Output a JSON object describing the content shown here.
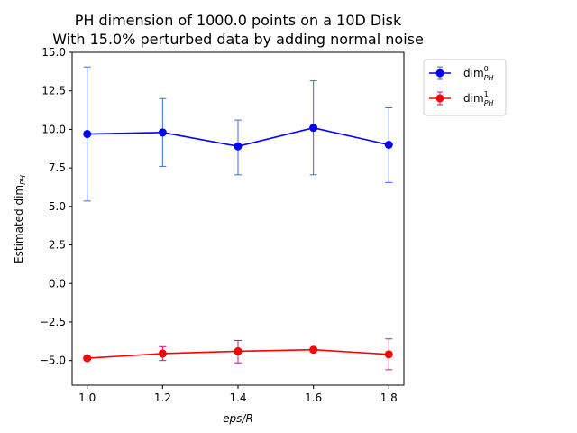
{
  "chart_data": {
    "type": "line",
    "title_line1": "PH dimension of 1000.0 points on a 10D Disk",
    "title_line2": "With 15.0% perturbed data by adding normal noise",
    "xlabel": "eps/R",
    "ylabel": "Estimated dim",
    "ylabel_sub": "PH",
    "x": [
      1.0,
      1.2,
      1.4,
      1.6,
      1.8
    ],
    "xlim": [
      0.96,
      1.84
    ],
    "ylim": [
      -6.6,
      15.0
    ],
    "xticks": [
      "1.0",
      "1.2",
      "1.4",
      "1.6",
      "1.8"
    ],
    "yticks": [
      "15.0",
      "12.5",
      "10.0",
      "7.5",
      "5.0",
      "2.5",
      "0.0",
      "−2.5",
      "−5.0"
    ],
    "ytick_values": [
      15.0,
      12.5,
      10.0,
      7.5,
      5.0,
      2.5,
      0.0,
      -2.5,
      -5.0
    ],
    "legend_position": "outside-upper-right",
    "series": [
      {
        "name": "dim",
        "sup": "0",
        "sub": "PH",
        "color": "#0000ff",
        "errcolor": "#4169e1",
        "values": [
          9.7,
          9.8,
          8.9,
          10.1,
          9.0
        ],
        "err_low": [
          5.35,
          7.6,
          7.05,
          7.05,
          6.55
        ],
        "err_high": [
          14.05,
          12.0,
          10.6,
          13.15,
          11.4
        ]
      },
      {
        "name": "dim",
        "sup": "1",
        "sub": "PH",
        "color": "#ff0000",
        "errcolor": "#c71585",
        "values": [
          -4.85,
          -4.55,
          -4.4,
          -4.3,
          -4.6
        ],
        "err_low": [
          -4.85,
          -5.0,
          -5.15,
          -4.3,
          -5.6
        ],
        "err_high": [
          -4.85,
          -4.1,
          -3.7,
          -4.3,
          -3.6
        ]
      }
    ]
  }
}
